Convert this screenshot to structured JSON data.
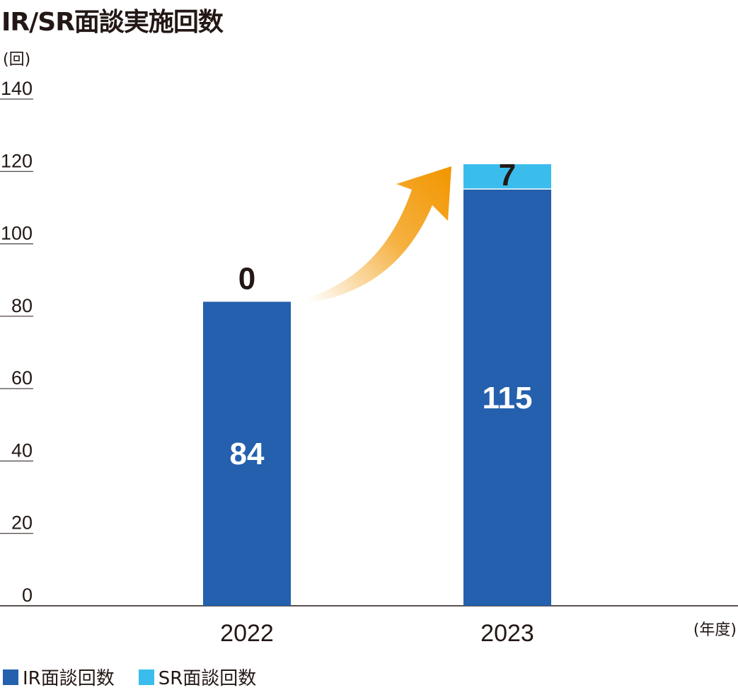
{
  "colors": {
    "ir": "#2460ad",
    "sr": "#3abded",
    "arrow": "#f29600",
    "axis": "#231815"
  },
  "chart_data": {
    "type": "bar",
    "stacked": true,
    "title": "IR/SR面談実施回数",
    "ylabel": "(回)",
    "xlabel": "(年度)",
    "ylim": [
      0,
      140
    ],
    "yticks": [
      0,
      20,
      40,
      60,
      80,
      100,
      120,
      140
    ],
    "categories": [
      "2022",
      "2023"
    ],
    "series": [
      {
        "name": "IR面談回数",
        "values": [
          84,
          115
        ]
      },
      {
        "name": "SR面談回数",
        "values": [
          0,
          7
        ]
      }
    ],
    "legend_position": "bottom-left",
    "annotation": "growth-arrow"
  }
}
